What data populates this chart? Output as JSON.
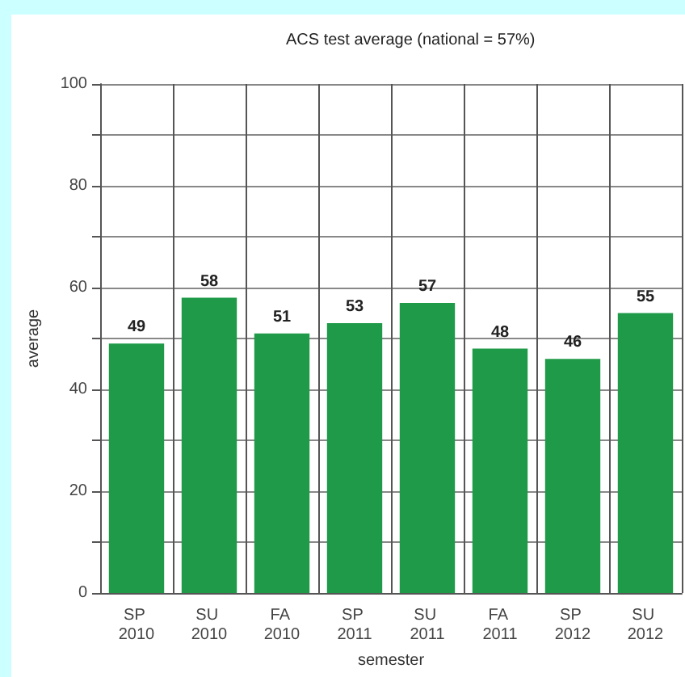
{
  "chart_data": {
    "type": "bar",
    "title": "ACS test average (national = 57%)",
    "xlabel": "semester",
    "ylabel": "average",
    "categories": [
      "SP 2010",
      "SU 2010",
      "FA 2010",
      "SP 2011",
      "SU 2011",
      "FA 2011",
      "SP 2012",
      "SU 2012"
    ],
    "values": [
      49,
      58,
      51,
      53,
      57,
      48,
      46,
      55
    ],
    "color": "#1f9a48",
    "ylim": [
      0,
      100
    ],
    "yticks": [
      0,
      {
        "value": 10,
        "label": null
      },
      20,
      {
        "value": 30,
        "label": null
      },
      40,
      {
        "value": 50,
        "label": null
      },
      60,
      {
        "value": 70,
        "label": null
      },
      80,
      {
        "value": 90,
        "label": null
      },
      100
    ],
    "grid": true,
    "data_labels": true
  }
}
